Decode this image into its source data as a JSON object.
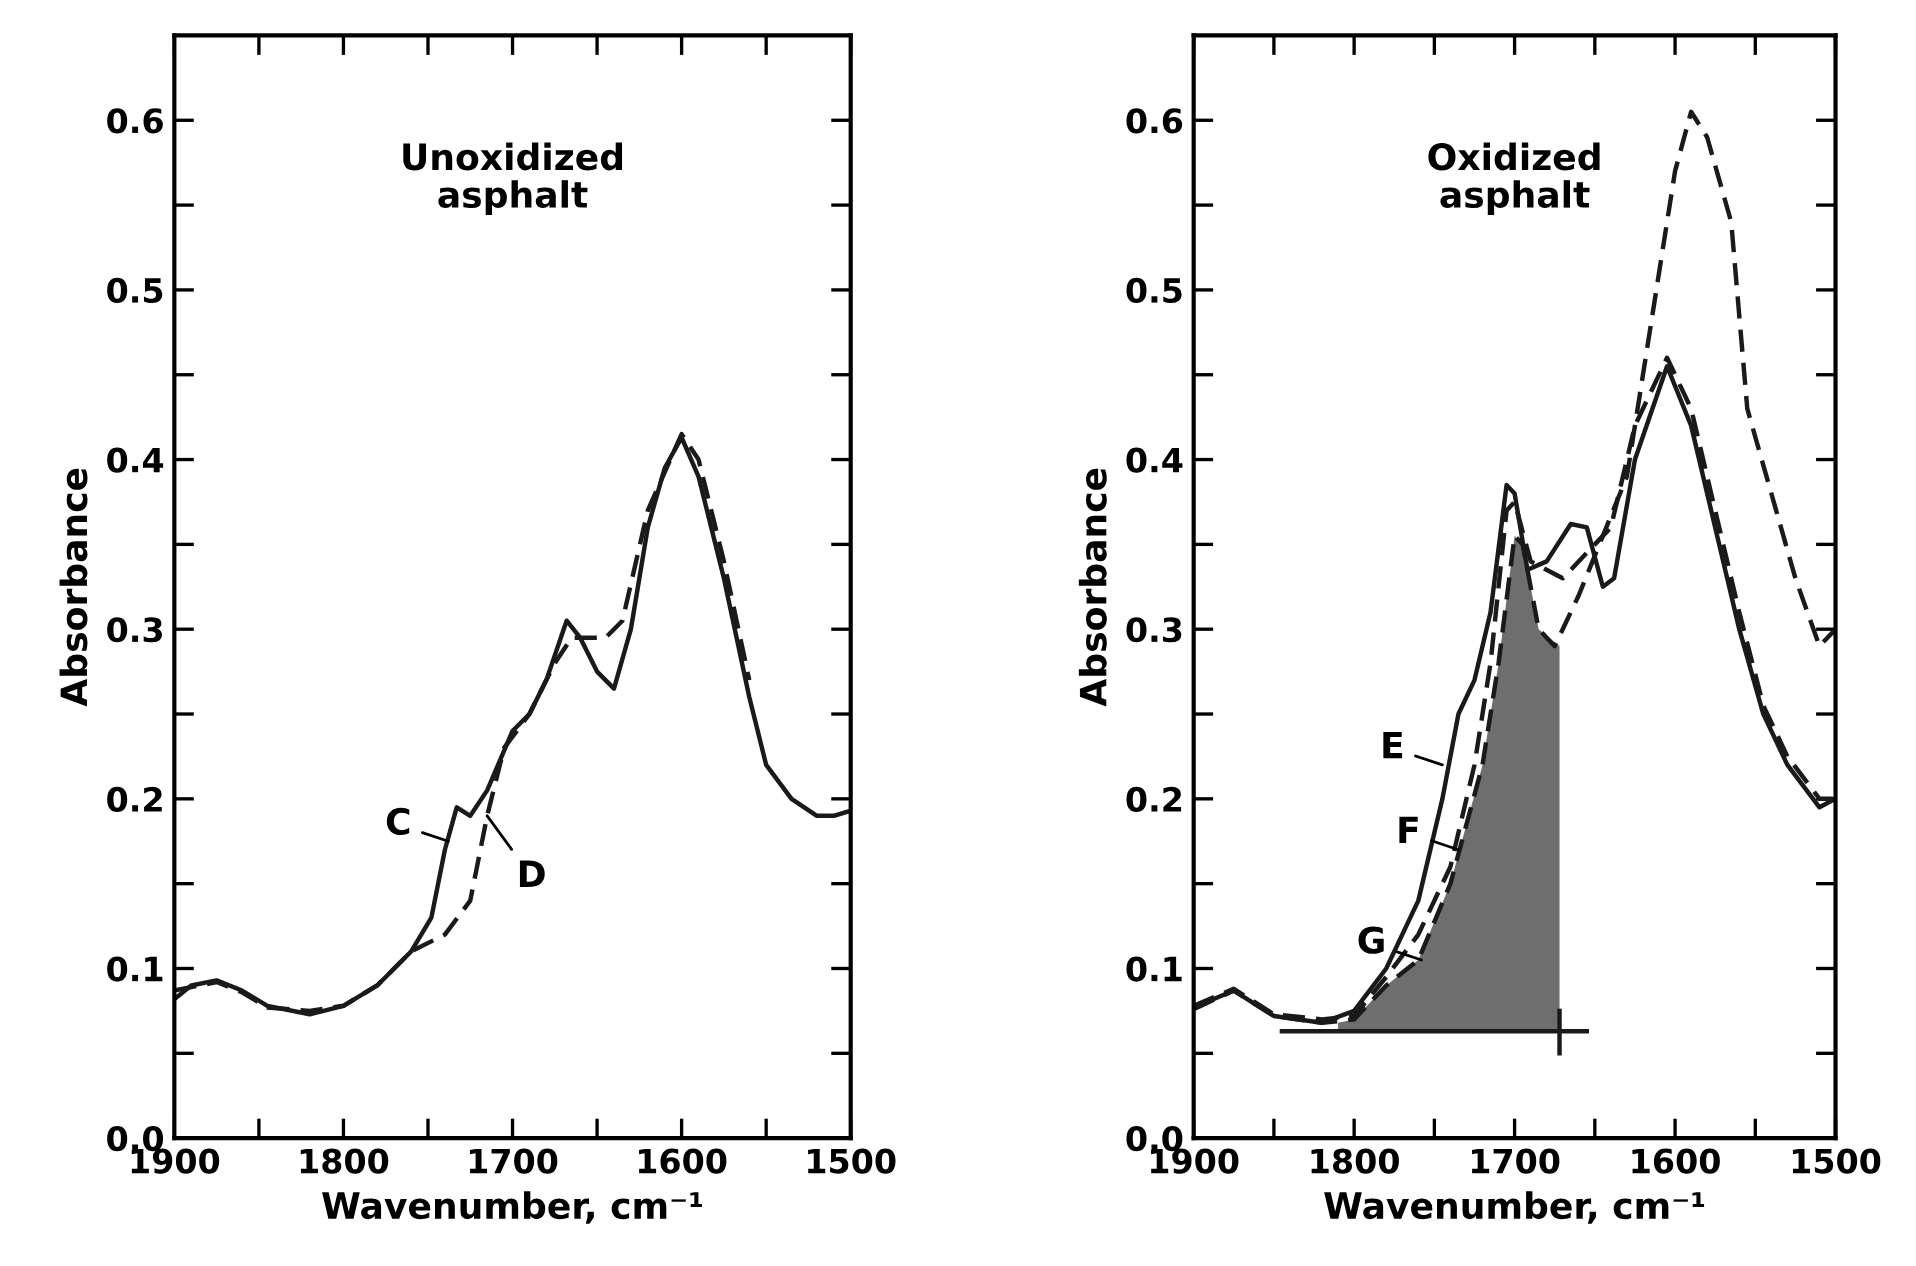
{
  "chart_data": [
    {
      "type": "line",
      "xlabel": "Wavenumber, cm⁻¹",
      "ylabel": "Absorbance",
      "xlim": [
        1900,
        1500
      ],
      "ylim": [
        0,
        0.65
      ],
      "xticks": [
        1900,
        {
          "value": 1850,
          "label": null
        },
        1800,
        {
          "value": 1750,
          "label": null
        },
        1700,
        {
          "value": 1650,
          "label": null
        },
        1600,
        {
          "value": 1550,
          "label": null
        },
        1500
      ],
      "yticks": [
        {
          "value": 0,
          "label": "0.0"
        },
        {
          "value": 0.05,
          "label": null
        },
        0.1,
        {
          "value": 0.15,
          "label": null
        },
        0.2,
        {
          "value": 0.25,
          "label": null
        },
        0.3,
        {
          "value": 0.35,
          "label": null
        },
        0.4,
        {
          "value": 0.45,
          "label": null
        },
        0.5,
        {
          "value": 0.55,
          "label": null
        },
        0.6
      ],
      "grid": false,
      "legend": false,
      "annotations": [
        "Unoxidized\nasphalt",
        {
          "text": "C",
          "x": 1738,
          "y": 0.175
        },
        {
          "text": "D",
          "x": 1715,
          "y": 0.19
        }
      ],
      "series": [
        {
          "color": "#1a1a1a",
          "line_style": "solid",
          "x": [
            1900,
            1890,
            1875,
            1860,
            1845,
            1820,
            1800,
            1780,
            1760,
            1748,
            1740,
            1733,
            1725,
            1715,
            1700,
            1690,
            1680,
            1668,
            1660,
            1650,
            1640,
            1630,
            1620,
            1610,
            1600,
            1590,
            1575,
            1560,
            1550,
            1535,
            1520,
            1510,
            1500
          ],
          "values": [
            0.082,
            0.09,
            0.093,
            0.087,
            0.078,
            0.073,
            0.078,
            0.09,
            0.11,
            0.13,
            0.17,
            0.195,
            0.19,
            0.205,
            0.24,
            0.25,
            0.27,
            0.305,
            0.295,
            0.275,
            0.265,
            0.3,
            0.36,
            0.395,
            0.413,
            0.39,
            0.33,
            0.26,
            0.22,
            0.2,
            0.19,
            0.19,
            0.193
          ]
        },
        {
          "color": "#1a1a1a",
          "line_style": "dashed",
          "x": [
            1900,
            1875,
            1860,
            1845,
            1820,
            1800,
            1780,
            1760,
            1740,
            1725,
            1715,
            1705,
            1690,
            1675,
            1665,
            1645,
            1635,
            1620,
            1600,
            1590,
            1575,
            1560
          ],
          "values": [
            0.087,
            0.092,
            0.086,
            0.077,
            0.075,
            0.078,
            0.09,
            0.11,
            0.12,
            0.14,
            0.19,
            0.23,
            0.25,
            0.28,
            0.295,
            0.295,
            0.305,
            0.37,
            0.415,
            0.4,
            0.34,
            0.27
          ]
        }
      ]
    },
    {
      "type": "line",
      "xlabel": "Wavenumber, cm⁻¹",
      "ylabel": "Absorbance",
      "xlim": [
        1900,
        1500
      ],
      "ylim": [
        0,
        0.65
      ],
      "xticks": [
        1900,
        {
          "value": 1850,
          "label": null
        },
        1800,
        {
          "value": 1750,
          "label": null
        },
        1700,
        {
          "value": 1650,
          "label": null
        },
        1600,
        {
          "value": 1550,
          "label": null
        },
        1500
      ],
      "yticks": [
        {
          "value": 0,
          "label": "0.0"
        },
        {
          "value": 0.05,
          "label": null
        },
        0.1,
        {
          "value": 0.15,
          "label": null
        },
        0.2,
        {
          "value": 0.25,
          "label": null
        },
        0.3,
        {
          "value": 0.35,
          "label": null
        },
        0.4,
        {
          "value": 0.45,
          "label": null
        },
        0.5,
        {
          "value": 0.55,
          "label": null
        },
        0.6
      ],
      "grid": false,
      "legend": false,
      "annotations": [
        "Oxidized\nasphalt",
        {
          "text": "E",
          "x": 1745,
          "y": 0.22
        },
        {
          "text": "F",
          "x": 1735,
          "y": 0.17
        },
        {
          "text": "G",
          "x": 1758,
          "y": 0.105
        }
      ],
      "series": [
        {
          "type": "area",
          "color": "#6e6e6e",
          "x": [
            1810,
            1800,
            1780,
            1760,
            1740,
            1720,
            1710,
            1700,
            1695,
            1685,
            1672
          ],
          "values": [
            0.068,
            0.07,
            0.09,
            0.105,
            0.15,
            0.22,
            0.28,
            0.355,
            0.35,
            0.3,
            0.29
          ]
        },
        {
          "color": "#1a1a1a",
          "line_style": "solid",
          "x": [
            1845,
            1655
          ],
          "values": [
            0.063,
            0.063
          ]
        },
        {
          "color": "#1a1a1a",
          "line_style": "solid",
          "x": [
            1672,
            1672
          ],
          "values": [
            0.05,
            0.075
          ]
        },
        {
          "color": "#1a1a1a",
          "line_style": "solid",
          "x": [
            1900,
            1875,
            1850,
            1820,
            1800,
            1780,
            1760,
            1745,
            1735,
            1725,
            1715,
            1705,
            1700,
            1692,
            1680,
            1665,
            1655,
            1645,
            1638,
            1625,
            1605,
            1590,
            1575,
            1560,
            1545,
            1530,
            1510,
            1500
          ],
          "values": [
            0.077,
            0.087,
            0.072,
            0.068,
            0.075,
            0.1,
            0.14,
            0.2,
            0.25,
            0.27,
            0.31,
            0.385,
            0.38,
            0.335,
            0.34,
            0.362,
            0.36,
            0.325,
            0.33,
            0.4,
            0.455,
            0.42,
            0.36,
            0.3,
            0.25,
            0.22,
            0.195,
            0.2
          ]
        },
        {
          "color": "#1a1a1a",
          "line_style": "dashed",
          "x": [
            1900,
            1875,
            1850,
            1820,
            1800,
            1780,
            1760,
            1740,
            1725,
            1715,
            1705,
            1700,
            1690,
            1670,
            1650,
            1640,
            1625,
            1605,
            1590,
            1575,
            1560,
            1545,
            1530,
            1510,
            1500
          ],
          "values": [
            0.078,
            0.088,
            0.073,
            0.07,
            0.072,
            0.095,
            0.12,
            0.16,
            0.22,
            0.28,
            0.37,
            0.375,
            0.34,
            0.33,
            0.35,
            0.36,
            0.42,
            0.46,
            0.43,
            0.37,
            0.31,
            0.255,
            0.225,
            0.2,
            0.2
          ]
        },
        {
          "color": "#1a1a1a",
          "line_style": "dashed",
          "x": [
            1900,
            1875,
            1850,
            1820,
            1800,
            1780,
            1760,
            1740,
            1720,
            1710,
            1700,
            1695,
            1685,
            1675,
            1660,
            1645,
            1630,
            1615,
            1600,
            1590,
            1580,
            1565,
            1555,
            1540,
            1525,
            1510,
            1500
          ],
          "values": [
            0.076,
            0.087,
            0.072,
            0.068,
            0.07,
            0.09,
            0.105,
            0.15,
            0.22,
            0.28,
            0.355,
            0.35,
            0.3,
            0.29,
            0.32,
            0.355,
            0.39,
            0.48,
            0.57,
            0.605,
            0.59,
            0.54,
            0.43,
            0.38,
            0.33,
            0.29,
            0.3
          ]
        }
      ]
    }
  ]
}
